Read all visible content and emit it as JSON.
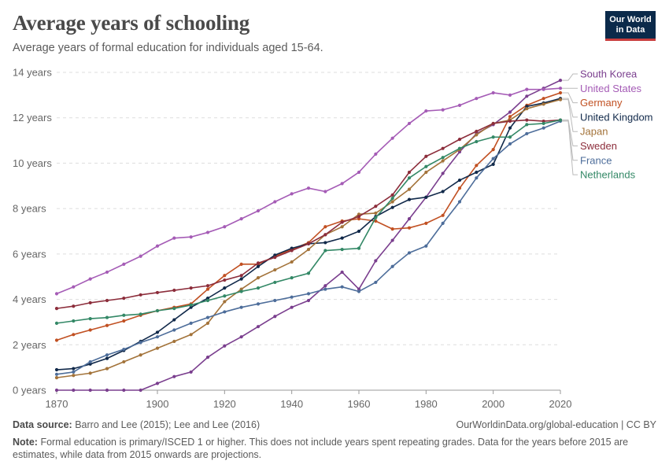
{
  "header": {
    "title": "Average years of schooling",
    "subtitle": "Average years of formal education for individuals aged 15-64.",
    "logo_line1": "Our World",
    "logo_line2": "in Data"
  },
  "footer": {
    "source_label": "Data source:",
    "source_text": "Barro and Lee (2015); Lee and Lee (2016)",
    "link_text": "OurWorldinData.org/global-education | CC BY",
    "note_label": "Note:",
    "note_text": "Formal education is primary/ISCED 1 or higher. This does not include years spent repeating grades. Data for the years before 2015 are estimates, while data from 2015 onwards are projections."
  },
  "chart_data": {
    "type": "line",
    "xlim": [
      1870,
      2020
    ],
    "ylim": [
      0,
      14
    ],
    "x_ticks": [
      1870,
      1900,
      1920,
      1940,
      1960,
      1980,
      2000,
      2020
    ],
    "y_ticks": [
      0,
      2,
      4,
      6,
      8,
      10,
      12,
      14
    ],
    "y_tick_labels": [
      "0 years",
      "2 years",
      "4 years",
      "6 years",
      "8 years",
      "10 years",
      "12 years",
      "14 years"
    ],
    "grid": "horizontal dashed",
    "legend": "right, labels at line ends",
    "x": [
      1870,
      1875,
      1880,
      1885,
      1890,
      1895,
      1900,
      1905,
      1910,
      1915,
      1920,
      1925,
      1930,
      1935,
      1940,
      1945,
      1950,
      1955,
      1960,
      1965,
      1970,
      1975,
      1980,
      1985,
      1990,
      1995,
      2000,
      2005,
      2010,
      2015,
      2020
    ],
    "series": [
      {
        "name": "South Korea",
        "color": "#7a3e8e",
        "values": [
          0,
          0,
          0,
          0,
          0,
          0,
          0.3,
          0.6,
          0.8,
          1.45,
          1.95,
          2.35,
          2.8,
          3.25,
          3.65,
          3.95,
          4.6,
          5.2,
          4.45,
          5.7,
          6.6,
          7.55,
          8.5,
          9.55,
          10.5,
          11.3,
          11.7,
          12.25,
          12.95,
          13.3,
          13.65
        ]
      },
      {
        "name": "United States",
        "color": "#a55cb6",
        "values": [
          4.25,
          4.55,
          4.9,
          5.2,
          5.55,
          5.9,
          6.35,
          6.7,
          6.75,
          6.95,
          7.2,
          7.55,
          7.9,
          8.3,
          8.65,
          8.9,
          8.75,
          9.1,
          9.6,
          10.4,
          11.1,
          11.75,
          12.3,
          12.35,
          12.55,
          12.85,
          13.1,
          13.0,
          13.25,
          13.25,
          13.3
        ]
      },
      {
        "name": "Germany",
        "color": "#c15022",
        "values": [
          2.2,
          2.45,
          2.65,
          2.85,
          3.05,
          3.3,
          3.5,
          3.65,
          3.8,
          4.45,
          5.05,
          5.55,
          5.55,
          5.9,
          6.2,
          6.5,
          7.2,
          7.45,
          7.55,
          7.45,
          7.1,
          7.15,
          7.35,
          7.7,
          8.9,
          9.9,
          10.6,
          12.05,
          12.55,
          12.85,
          13.1
        ]
      },
      {
        "name": "United Kingdom",
        "color": "#11294a",
        "values": [
          0.9,
          0.95,
          1.15,
          1.4,
          1.75,
          2.15,
          2.55,
          3.1,
          3.65,
          4.05,
          4.5,
          4.9,
          5.45,
          5.95,
          6.25,
          6.45,
          6.5,
          6.7,
          7.0,
          7.65,
          8.05,
          8.4,
          8.5,
          8.75,
          9.25,
          9.6,
          9.95,
          11.55,
          12.5,
          12.65,
          12.85
        ]
      },
      {
        "name": "Japan",
        "color": "#a3733a",
        "values": [
          0.55,
          0.65,
          0.75,
          0.95,
          1.25,
          1.55,
          1.85,
          2.15,
          2.45,
          2.95,
          3.9,
          4.45,
          4.95,
          5.3,
          5.65,
          6.2,
          6.85,
          7.2,
          7.75,
          7.8,
          8.3,
          8.85,
          9.6,
          10.1,
          10.6,
          11.25,
          11.75,
          11.9,
          12.4,
          12.6,
          12.8
        ]
      },
      {
        "name": "Sweden",
        "color": "#8c2d3b",
        "values": [
          3.6,
          3.7,
          3.85,
          3.95,
          4.05,
          4.2,
          4.3,
          4.4,
          4.5,
          4.6,
          4.85,
          5.05,
          5.6,
          5.85,
          6.15,
          6.45,
          6.85,
          7.4,
          7.65,
          8.1,
          8.6,
          9.6,
          10.3,
          10.65,
          11.05,
          11.4,
          11.75,
          11.85,
          11.9,
          11.85,
          11.9
        ]
      },
      {
        "name": "France",
        "color": "#4d6d9a",
        "values": [
          0.7,
          0.8,
          1.25,
          1.55,
          1.8,
          2.1,
          2.35,
          2.65,
          2.95,
          3.2,
          3.45,
          3.65,
          3.8,
          3.95,
          4.1,
          4.25,
          4.45,
          4.55,
          4.35,
          4.75,
          5.45,
          6.05,
          6.35,
          7.35,
          8.3,
          9.35,
          10.2,
          10.85,
          11.3,
          11.55,
          11.85
        ]
      },
      {
        "name": "Netherlands",
        "color": "#338866",
        "values": [
          2.95,
          3.05,
          3.15,
          3.2,
          3.3,
          3.35,
          3.5,
          3.6,
          3.75,
          3.95,
          4.15,
          4.35,
          4.5,
          4.75,
          4.95,
          5.15,
          6.15,
          6.2,
          6.25,
          7.6,
          8.45,
          9.35,
          9.85,
          10.25,
          10.65,
          10.95,
          11.15,
          11.15,
          11.7,
          11.75,
          11.9
        ]
      }
    ]
  }
}
